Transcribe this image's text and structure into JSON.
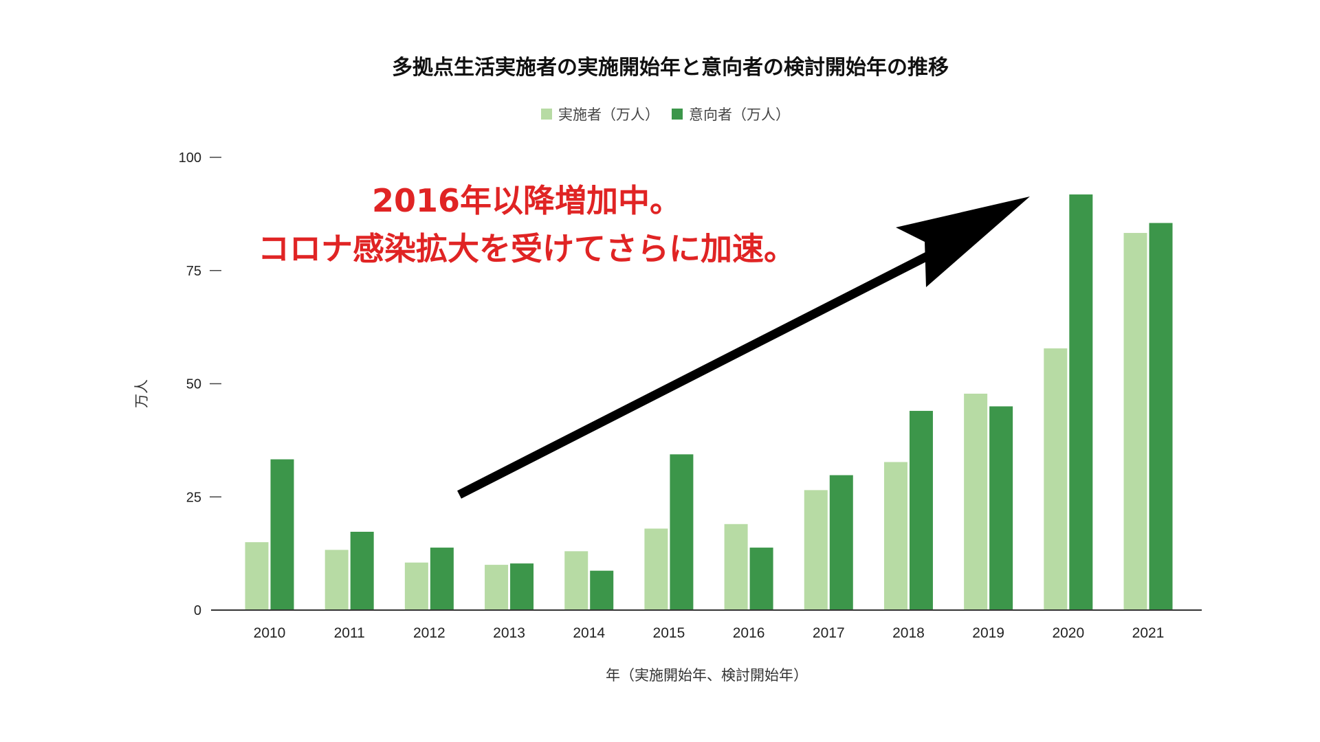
{
  "chart_data": {
    "type": "bar",
    "title": "多拠点生活実施者の実施開始年と意向者の検討開始年の推移",
    "xlabel": "年（実施開始年、検討開始年）",
    "ylabel": "万人",
    "ylim": [
      0,
      100
    ],
    "yticks": [
      0,
      25,
      50,
      75,
      100
    ],
    "grid": false,
    "legend_position": "top",
    "categories": [
      "2010",
      "2011",
      "2012",
      "2013",
      "2014",
      "2015",
      "2016",
      "2017",
      "2018",
      "2019",
      "2020",
      "2021"
    ],
    "series": [
      {
        "name": "実施者（万人）",
        "color": "#b7dba4",
        "values": [
          15,
          13.3,
          10.5,
          10,
          13,
          18,
          19,
          26.5,
          32.7,
          47.8,
          57.8,
          83.3
        ]
      },
      {
        "name": "意向者（万人）",
        "color": "#3c964a",
        "values": [
          33.3,
          17.3,
          13.8,
          10.3,
          8.7,
          34.4,
          13.8,
          29.8,
          44,
          45,
          91.8,
          85.5
        ]
      }
    ],
    "annotations": [
      "2016年以降増加中。",
      "コロナ感染拡大を受けてさらに加速。"
    ],
    "annotation_color": "#e02424",
    "arrow_color": "#000000"
  }
}
